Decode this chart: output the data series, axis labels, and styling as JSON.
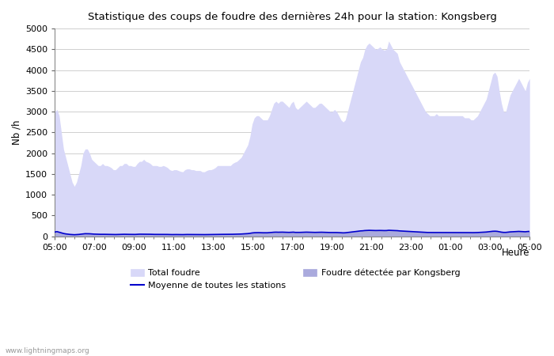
{
  "title": "Statistique des coups de foudre des dernières 24h pour la station: Kongsberg",
  "xlabel": "Heure",
  "ylabel": "Nb /h",
  "ylim": [
    0,
    5000
  ],
  "yticks": [
    0,
    500,
    1000,
    1500,
    2000,
    2500,
    3000,
    3500,
    4000,
    4500,
    5000
  ],
  "xtick_labels": [
    "05:00",
    "07:00",
    "09:00",
    "11:00",
    "13:00",
    "15:00",
    "17:00",
    "19:00",
    "21:00",
    "23:00",
    "01:00",
    "03:00",
    "05:00"
  ],
  "background_color": "#ffffff",
  "plot_bg_color": "#ffffff",
  "grid_color": "#c8c8c8",
  "total_foudre_color": "#d8d8f8",
  "kongsberg_color": "#aaaadd",
  "moyenne_color": "#0000cc",
  "watermark": "www.lightningmaps.org",
  "total_foudre_y": [
    3000,
    3050,
    2900,
    2500,
    2100,
    1900,
    1700,
    1500,
    1300,
    1200,
    1300,
    1500,
    1700,
    2000,
    2100,
    2100,
    2000,
    1850,
    1800,
    1750,
    1700,
    1700,
    1750,
    1700,
    1700,
    1680,
    1650,
    1600,
    1600,
    1650,
    1700,
    1700,
    1750,
    1750,
    1700,
    1700,
    1680,
    1680,
    1750,
    1800,
    1800,
    1850,
    1800,
    1780,
    1750,
    1700,
    1700,
    1700,
    1680,
    1680,
    1700,
    1680,
    1650,
    1600,
    1580,
    1600,
    1600,
    1580,
    1560,
    1550,
    1600,
    1620,
    1620,
    1600,
    1600,
    1580,
    1580,
    1580,
    1550,
    1550,
    1580,
    1600,
    1600,
    1620,
    1650,
    1700,
    1700,
    1700,
    1700,
    1700,
    1700,
    1700,
    1750,
    1780,
    1800,
    1850,
    1900,
    2000,
    2100,
    2200,
    2400,
    2700,
    2850,
    2900,
    2900,
    2850,
    2800,
    2800,
    2800,
    2900,
    3050,
    3200,
    3250,
    3200,
    3250,
    3250,
    3200,
    3150,
    3100,
    3200,
    3250,
    3100,
    3050,
    3100,
    3150,
    3200,
    3250,
    3200,
    3150,
    3100,
    3100,
    3150,
    3200,
    3200,
    3150,
    3100,
    3050,
    3000,
    3000,
    3050,
    3000,
    2900,
    2800,
    2750,
    2800,
    3000,
    3200,
    3400,
    3600,
    3800,
    4000,
    4200,
    4300,
    4500,
    4600,
    4650,
    4600,
    4550,
    4500,
    4520,
    4560,
    4500,
    4480,
    4500,
    4700,
    4600,
    4500,
    4450,
    4400,
    4200,
    4100,
    4000,
    3900,
    3800,
    3700,
    3600,
    3500,
    3400,
    3300,
    3200,
    3100,
    3000,
    2950,
    2900,
    2900,
    2900,
    2950,
    2900,
    2900,
    2900,
    2900,
    2900,
    2900,
    2900,
    2900,
    2900,
    2900,
    2900,
    2900,
    2850,
    2850,
    2850,
    2800,
    2800,
    2850,
    2900,
    3000,
    3100,
    3200,
    3300,
    3500,
    3700,
    3900,
    3950,
    3850,
    3500,
    3200,
    3000,
    3000,
    3200,
    3400,
    3500,
    3600,
    3700,
    3800,
    3700,
    3600,
    3500,
    3700,
    3800
  ],
  "kongsberg_y": [
    100,
    110,
    95,
    80,
    65,
    55,
    48,
    42,
    38,
    35,
    38,
    42,
    48,
    55,
    60,
    60,
    58,
    53,
    50,
    48,
    46,
    45,
    46,
    45,
    44,
    43,
    42,
    40,
    40,
    42,
    44,
    44,
    46,
    46,
    44,
    43,
    42,
    42,
    46,
    48,
    48,
    50,
    48,
    47,
    46,
    44,
    43,
    43,
    43,
    43,
    44,
    43,
    42,
    40,
    39,
    40,
    40,
    39,
    38,
    38,
    40,
    41,
    41,
    40,
    40,
    39,
    39,
    39,
    38,
    38,
    39,
    40,
    40,
    41,
    42,
    44,
    44,
    44,
    44,
    44,
    44,
    44,
    46,
    47,
    48,
    50,
    52,
    55,
    58,
    62,
    68,
    78,
    83,
    85,
    85,
    83,
    82,
    82,
    82,
    85,
    90,
    95,
    97,
    95,
    97,
    97,
    95,
    93,
    91,
    95,
    97,
    91,
    90,
    91,
    93,
    95,
    97,
    95,
    93,
    91,
    91,
    93,
    95,
    95,
    93,
    91,
    90,
    88,
    88,
    90,
    88,
    85,
    82,
    80,
    82,
    88,
    95,
    100,
    107,
    113,
    120,
    127,
    130,
    136,
    139,
    141,
    139,
    137,
    136,
    137,
    138,
    136,
    135,
    136,
    142,
    139,
    136,
    135,
    133,
    127,
    124,
    121,
    118,
    115,
    112,
    109,
    106,
    103,
    100,
    97,
    94,
    91,
    89,
    88,
    88,
    88,
    89,
    88,
    88,
    88,
    88,
    88,
    88,
    88,
    88,
    88,
    88,
    88,
    88,
    86,
    86,
    86,
    85,
    85,
    86,
    88,
    91,
    94,
    97,
    100,
    106,
    112,
    118,
    120,
    117,
    106,
    97,
    91,
    91,
    97,
    103,
    106,
    109,
    112,
    115,
    112,
    109,
    106,
    112,
    115
  ],
  "moyenne_y": [
    100,
    110,
    95,
    80,
    65,
    55,
    48,
    42,
    38,
    35,
    38,
    42,
    48,
    55,
    60,
    60,
    58,
    53,
    50,
    48,
    46,
    45,
    46,
    45,
    44,
    43,
    42,
    40,
    40,
    42,
    44,
    44,
    46,
    46,
    44,
    43,
    42,
    42,
    46,
    48,
    48,
    50,
    48,
    47,
    46,
    44,
    43,
    43,
    43,
    43,
    44,
    43,
    42,
    40,
    39,
    40,
    40,
    39,
    38,
    38,
    40,
    41,
    41,
    40,
    40,
    39,
    39,
    39,
    38,
    38,
    39,
    40,
    40,
    41,
    42,
    44,
    44,
    44,
    44,
    44,
    44,
    44,
    46,
    47,
    48,
    50,
    52,
    55,
    58,
    62,
    68,
    78,
    83,
    85,
    85,
    83,
    82,
    82,
    82,
    85,
    90,
    95,
    97,
    95,
    97,
    97,
    95,
    93,
    91,
    95,
    97,
    91,
    90,
    91,
    93,
    95,
    97,
    95,
    93,
    91,
    91,
    93,
    95,
    95,
    93,
    91,
    90,
    88,
    88,
    90,
    88,
    85,
    82,
    80,
    82,
    88,
    95,
    100,
    107,
    113,
    120,
    127,
    130,
    136,
    139,
    141,
    139,
    137,
    136,
    137,
    138,
    136,
    135,
    136,
    142,
    139,
    136,
    135,
    133,
    127,
    124,
    121,
    118,
    115,
    112,
    109,
    106,
    103,
    100,
    97,
    94,
    91,
    89,
    88,
    88,
    88,
    89,
    88,
    88,
    88,
    88,
    88,
    88,
    88,
    88,
    88,
    88,
    88,
    88,
    86,
    86,
    86,
    85,
    85,
    86,
    88,
    91,
    94,
    97,
    100,
    106,
    112,
    118,
    120,
    117,
    106,
    97,
    91,
    91,
    97,
    103,
    106,
    109,
    112,
    115,
    112,
    109,
    106,
    112,
    115
  ]
}
